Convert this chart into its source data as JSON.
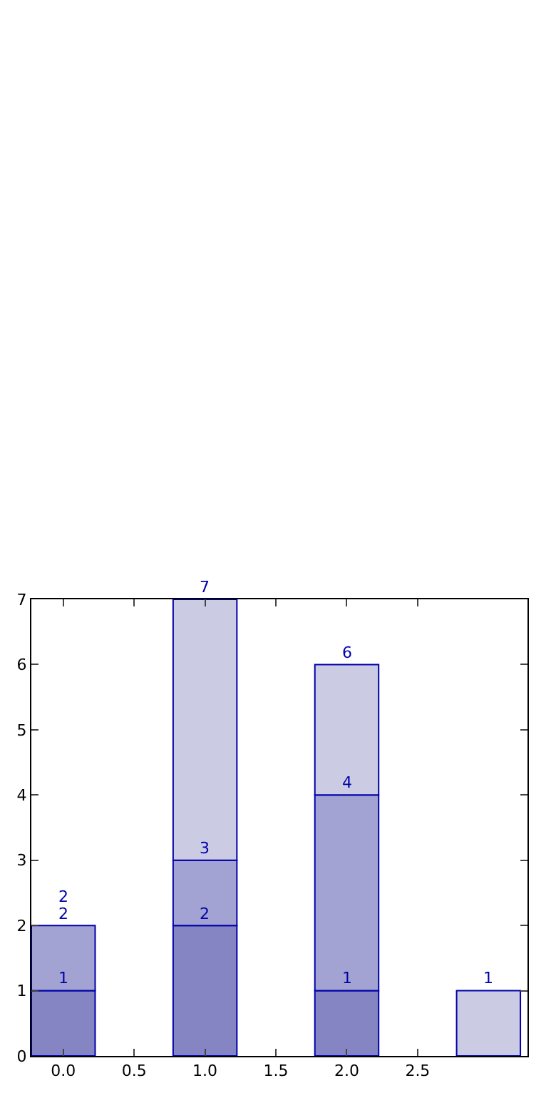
{
  "chart_data": {
    "type": "bar",
    "stacked": true,
    "x": [
      0,
      1,
      2,
      3
    ],
    "series": [
      {
        "color": "#8585c4",
        "values": [
          1,
          2,
          1,
          null
        ],
        "value_labels": [
          "1",
          "2",
          "1",
          null
        ]
      },
      {
        "color": "#a3a3d3",
        "values": [
          1,
          1,
          3,
          null
        ]
      },
      {
        "color": "#cbcbe4",
        "values": [
          null,
          4,
          2,
          1
        ]
      }
    ],
    "totals": [
      "2",
      "7",
      "6",
      "1"
    ],
    "annotations": [
      {
        "text": "2",
        "x": 0,
        "y": 2
      },
      {
        "text": "3",
        "x": 1,
        "y": 3
      },
      {
        "text": "4",
        "x": 2,
        "y": 4
      }
    ],
    "xlim": [
      -0.225,
      3.275
    ],
    "xticks": [
      {
        "value": 0,
        "label": "0.0"
      },
      {
        "value": 0.5,
        "label": "0.5"
      },
      {
        "value": 1,
        "label": "1.0"
      },
      {
        "value": 1.5,
        "label": "1.5"
      },
      {
        "value": 2,
        "label": "2.0"
      },
      {
        "value": 2.5,
        "label": "2.5"
      }
    ],
    "ylim": [
      0,
      7
    ],
    "yticks": [
      0,
      1,
      2,
      3,
      4,
      5,
      6,
      7
    ]
  }
}
